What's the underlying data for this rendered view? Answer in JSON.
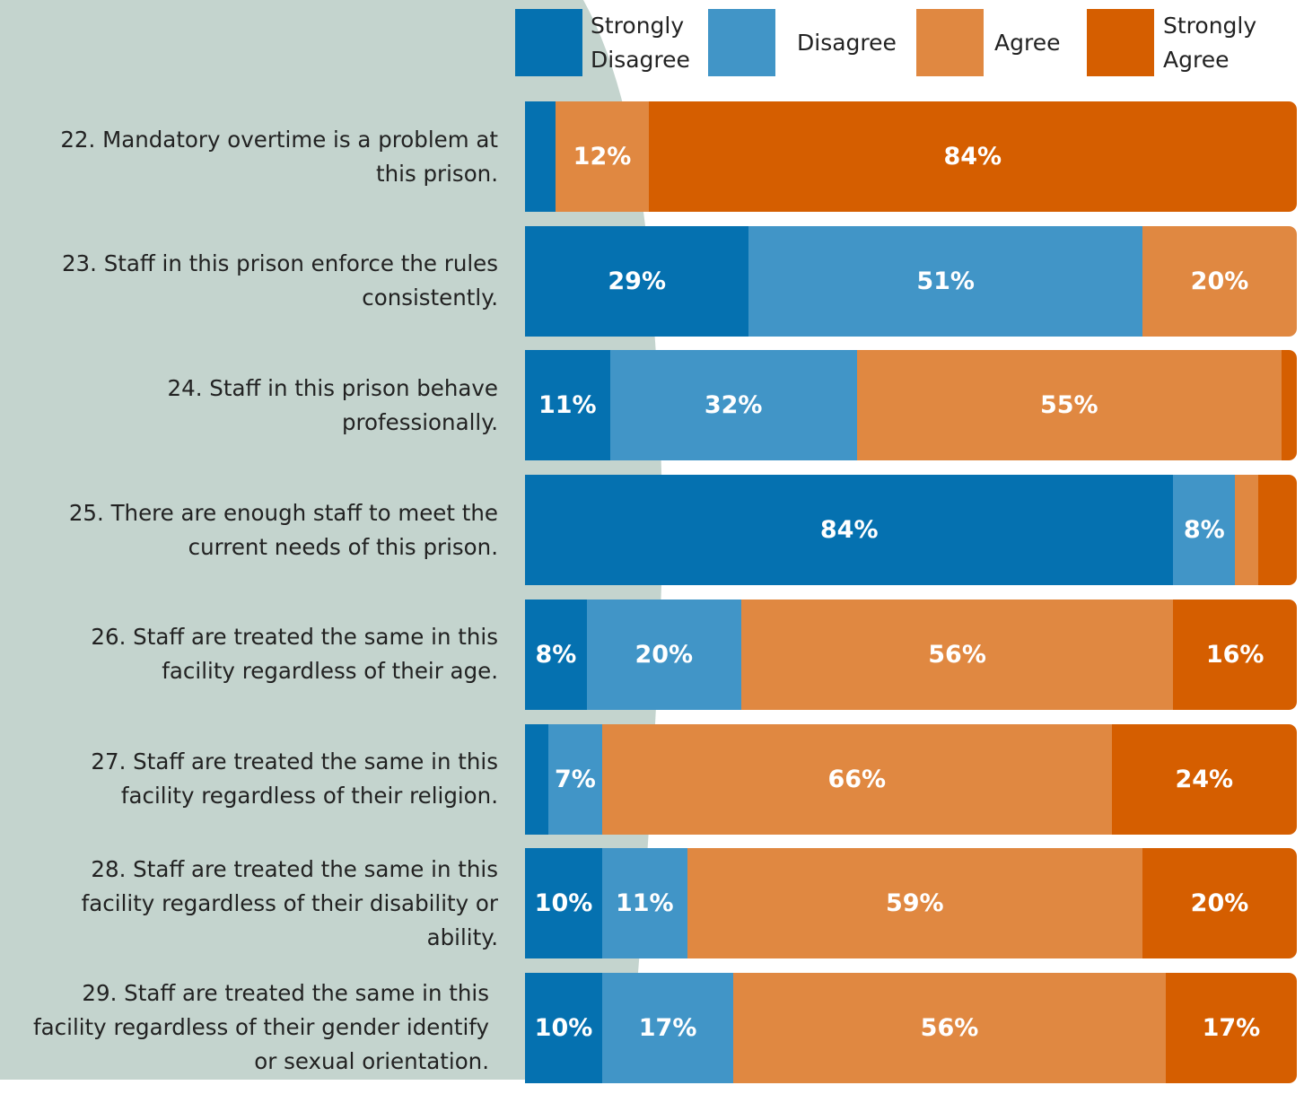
{
  "chart_data": {
    "type": "stacked-bar-horizontal",
    "categories": [
      "22. Mandatory overtime is a problem at this prison.",
      "23. Staff in this prison enforce the rules consistently.",
      "24. Staff in this prison behave professionally.",
      "25. There are enough staff to meet the current needs of this prison.",
      "26. Staff are treated the same in this facility regardless of their age.",
      "27. Staff are treated the same in this facility regardless of their religion.",
      "28. Staff are treated the same in this facility regardless of their disability or ability.",
      "29. Staff are treated the same in this facility regardless of their gender identify or sexual orientation."
    ],
    "xlim": [
      0,
      100
    ],
    "series": [
      {
        "name": "Strongly Disagree",
        "color": "#0571b0",
        "values": [
          4,
          29,
          11,
          84,
          8,
          3,
          10,
          10
        ],
        "value_labels": [
          null,
          "29%",
          "11%",
          "84%",
          "8%",
          null,
          "10%",
          "10%"
        ]
      },
      {
        "name": "Disagree",
        "color": "#4195c7",
        "values": [
          0,
          51,
          32,
          8,
          20,
          7,
          11,
          17
        ],
        "value_labels": [
          null,
          "51%",
          "32%",
          "8%",
          "20%",
          "7%",
          "11%",
          "17%"
        ]
      },
      {
        "name": "Agree",
        "color": "#e08841",
        "values": [
          12,
          20,
          55,
          3,
          56,
          66,
          59,
          56
        ],
        "value_labels": [
          "12%",
          "20%",
          "55%",
          null,
          "56%",
          "66%",
          "59%",
          "56%"
        ]
      },
      {
        "name": "Strongly Agree",
        "color": "#d55e00",
        "values": [
          84,
          0,
          2,
          5,
          16,
          24,
          20,
          17
        ],
        "value_labels": [
          "84%",
          null,
          null,
          null,
          "16%",
          "24%",
          "20%",
          "17%"
        ]
      }
    ]
  }
}
